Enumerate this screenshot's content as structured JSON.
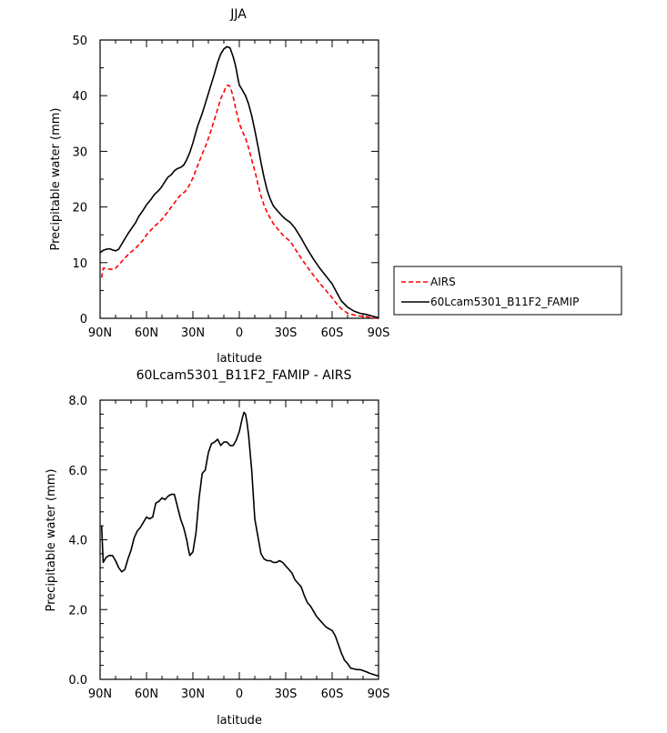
{
  "chart_data": [
    {
      "type": "line",
      "title": "JJA",
      "xlabel": "latitude",
      "ylabel": "Precipitable water (mm)",
      "xlim": [
        90,
        -90
      ],
      "ylim": [
        0,
        50
      ],
      "xticks": [
        90,
        60,
        30,
        0,
        -30,
        -60,
        -90
      ],
      "xtick_labels": [
        "90N",
        "60N",
        "30N",
        "0",
        "30S",
        "60S",
        "90S"
      ],
      "yticks": [
        0,
        10,
        20,
        30,
        40,
        50
      ],
      "ytick_labels": [
        "0",
        "10",
        "20",
        "30",
        "40",
        "50"
      ],
      "legend": {
        "position": "right-middle",
        "entries": [
          "AIRS",
          "60Lcam5301_B11F2_FAMIP"
        ]
      },
      "series": [
        {
          "name": "AIRS",
          "color": "#ff0000",
          "dash": "dashed",
          "x": [
            89,
            88,
            86,
            84,
            82,
            80,
            78,
            75,
            72,
            70,
            67,
            65,
            62,
            60,
            57,
            55,
            52,
            50,
            48,
            46,
            44,
            42,
            40,
            38,
            35,
            33,
            30,
            27,
            24,
            21,
            18,
            16,
            14,
            12,
            10,
            9,
            8,
            7,
            6,
            5,
            4,
            3,
            2,
            1,
            0,
            -2,
            -4,
            -6,
            -8,
            -10,
            -12,
            -14,
            -16,
            -18,
            -20,
            -22,
            -25,
            -28,
            -30,
            -33,
            -36,
            -40,
            -44,
            -48,
            -52,
            -56,
            -60,
            -63,
            -66,
            -70,
            -74,
            -78,
            -82,
            -86,
            -90
          ],
          "y": [
            7.3,
            9.0,
            9.0,
            8.8,
            8.8,
            9.0,
            9.6,
            10.5,
            11.4,
            11.9,
            12.6,
            13.2,
            14.1,
            15.0,
            15.9,
            16.5,
            17.2,
            17.8,
            18.5,
            19.2,
            20.0,
            20.7,
            21.5,
            22.1,
            22.8,
            23.6,
            25.2,
            27.4,
            29.5,
            31.5,
            34.0,
            35.8,
            37.6,
            39.5,
            40.6,
            41.4,
            41.8,
            41.9,
            41.6,
            40.8,
            39.8,
            38.6,
            37.2,
            36.2,
            35.0,
            33.6,
            32.4,
            30.6,
            28.5,
            26.5,
            24.2,
            22.0,
            20.3,
            19.0,
            18.0,
            17.0,
            16.0,
            15.0,
            14.5,
            13.8,
            12.5,
            10.8,
            9.2,
            7.7,
            6.3,
            5.0,
            3.7,
            2.6,
            1.7,
            0.9,
            0.6,
            0.4,
            0.3,
            0.1,
            0.0
          ]
        },
        {
          "name": "60Lcam5301_B11F2_FAMIP",
          "color": "#000000",
          "dash": "solid",
          "x": [
            90,
            88,
            86,
            84,
            82,
            80,
            78,
            75,
            72,
            70,
            67,
            65,
            62,
            60,
            57,
            55,
            52,
            50,
            48,
            46,
            44,
            42,
            40,
            38,
            36,
            34,
            32,
            30,
            27,
            24,
            21,
            18,
            16,
            14,
            12,
            10,
            8,
            6,
            5,
            4,
            3,
            2,
            1,
            0,
            -2,
            -4,
            -6,
            -8,
            -10,
            -12,
            -14,
            -16,
            -18,
            -20,
            -22,
            -25,
            -28,
            -30,
            -33,
            -36,
            -40,
            -44,
            -48,
            -52,
            -56,
            -60,
            -63,
            -66,
            -70,
            -74,
            -78,
            -82,
            -86,
            -90
          ],
          "y": [
            11.8,
            12.2,
            12.4,
            12.5,
            12.3,
            12.1,
            12.4,
            13.8,
            15.2,
            16.0,
            17.2,
            18.3,
            19.5,
            20.4,
            21.4,
            22.2,
            23.0,
            23.7,
            24.6,
            25.4,
            25.8,
            26.5,
            26.9,
            27.1,
            27.5,
            28.5,
            29.8,
            31.5,
            34.5,
            36.8,
            39.5,
            42.2,
            44.0,
            46.0,
            47.5,
            48.4,
            48.8,
            48.6,
            47.8,
            47.0,
            46.0,
            44.8,
            43.2,
            41.9,
            41.0,
            40.0,
            38.5,
            36.4,
            33.8,
            31.0,
            28.0,
            25.3,
            23.0,
            21.4,
            20.2,
            19.2,
            18.3,
            17.8,
            17.2,
            16.2,
            14.4,
            12.4,
            10.6,
            9.0,
            7.6,
            6.2,
            4.6,
            3.1,
            2.0,
            1.3,
            0.9,
            0.7,
            0.4,
            0.1
          ]
        }
      ]
    },
    {
      "type": "line",
      "title": "60Lcam5301_B11F2_FAMIP - AIRS",
      "xlabel": "latitude",
      "ylabel": "Precipitable water (mm)",
      "xlim": [
        90,
        -90
      ],
      "ylim": [
        0,
        8
      ],
      "xticks": [
        90,
        60,
        30,
        0,
        -30,
        -60,
        -90
      ],
      "xtick_labels": [
        "90N",
        "60N",
        "30N",
        "0",
        "30S",
        "60S",
        "90S"
      ],
      "yticks": [
        0,
        2,
        4,
        6,
        8
      ],
      "ytick_labels": [
        "0.0",
        "2.0",
        "4.0",
        "6.0",
        "8.0"
      ],
      "series": [
        {
          "name": "60Lcam5301_B11F2_FAMIP - AIRS",
          "color": "#000000",
          "dash": "solid",
          "x": [
            89,
            88,
            86,
            84,
            82,
            80,
            78,
            76,
            74,
            72,
            70,
            68,
            66,
            64,
            62,
            60,
            58,
            56,
            54,
            52,
            50,
            48,
            46,
            44,
            42,
            40,
            38,
            36,
            34,
            33,
            32,
            30,
            28,
            26,
            24,
            22,
            20,
            18,
            16,
            14,
            12,
            10,
            8,
            6,
            4,
            2,
            0,
            -2,
            -3,
            -4,
            -5,
            -6,
            -8,
            -10,
            -12,
            -14,
            -16,
            -18,
            -20,
            -22,
            -24,
            -26,
            -28,
            -30,
            -32,
            -34,
            -36,
            -38,
            -40,
            -42,
            -44,
            -46,
            -48,
            -50,
            -52,
            -54,
            -56,
            -58,
            -60,
            -62,
            -64,
            -66,
            -68,
            -70,
            -72,
            -74,
            -76,
            -78,
            -80,
            -82,
            -84,
            -86,
            -88,
            -90
          ],
          "y": [
            4.4,
            3.35,
            3.5,
            3.55,
            3.55,
            3.4,
            3.2,
            3.08,
            3.15,
            3.45,
            3.7,
            4.05,
            4.25,
            4.35,
            4.5,
            4.65,
            4.6,
            4.65,
            5.05,
            5.1,
            5.2,
            5.15,
            5.25,
            5.3,
            5.3,
            4.95,
            4.6,
            4.35,
            4.0,
            3.75,
            3.55,
            3.65,
            4.2,
            5.2,
            5.9,
            6.0,
            6.5,
            6.75,
            6.8,
            6.88,
            6.7,
            6.8,
            6.8,
            6.7,
            6.7,
            6.85,
            7.1,
            7.5,
            7.65,
            7.6,
            7.35,
            7.0,
            6.0,
            4.6,
            4.1,
            3.6,
            3.45,
            3.4,
            3.4,
            3.35,
            3.35,
            3.4,
            3.35,
            3.25,
            3.15,
            3.05,
            2.85,
            2.75,
            2.65,
            2.4,
            2.2,
            2.1,
            1.95,
            1.8,
            1.7,
            1.6,
            1.5,
            1.45,
            1.4,
            1.25,
            1.0,
            0.75,
            0.55,
            0.45,
            0.32,
            0.3,
            0.28,
            0.28,
            0.25,
            0.22,
            0.18,
            0.15,
            0.12,
            0.1
          ]
        }
      ]
    }
  ]
}
